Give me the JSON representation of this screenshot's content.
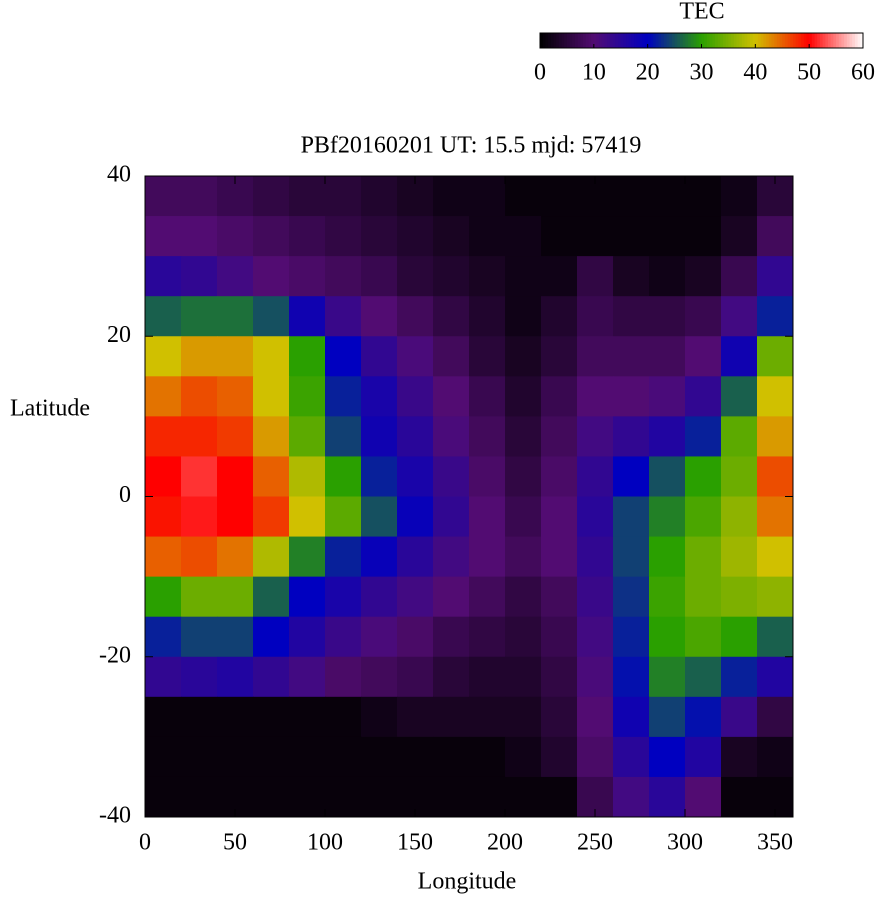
{
  "chart_data": {
    "type": "heatmap",
    "title": "PBf20160201  UT: 15.5  mjd: 57419",
    "x_label": "Longitude",
    "y_label": "Latitude",
    "colorbar_label": "TEC",
    "x": [
      10,
      30,
      50,
      70,
      90,
      110,
      130,
      150,
      170,
      190,
      210,
      230,
      250,
      270,
      290,
      310,
      330,
      350
    ],
    "y": [
      37.5,
      32.5,
      27.5,
      22.5,
      17.5,
      12.5,
      7.5,
      2.5,
      -2.5,
      -7.5,
      -12.5,
      -17.5,
      -22.5,
      -27.5,
      -32.5,
      -37.5
    ],
    "z": [
      [
        8,
        8,
        7,
        6,
        5,
        5,
        4,
        3,
        2,
        2,
        1,
        1,
        1,
        1,
        1,
        1,
        2,
        5
      ],
      [
        10,
        10,
        9,
        8,
        7,
        6,
        5,
        4,
        3,
        2,
        2,
        1,
        1,
        1,
        1,
        1,
        3,
        8
      ],
      [
        15,
        14,
        12,
        10,
        9,
        8,
        7,
        5,
        4,
        3,
        2,
        2,
        6,
        3,
        2,
        3,
        7,
        14
      ],
      [
        26,
        27,
        27,
        25,
        18,
        13,
        10,
        8,
        6,
        4,
        2,
        4,
        7,
        6,
        6,
        7,
        12,
        22
      ],
      [
        40,
        42,
        42,
        40,
        30,
        20,
        14,
        11,
        8,
        5,
        3,
        5,
        8,
        8,
        8,
        10,
        18,
        34
      ],
      [
        44,
        46,
        45,
        40,
        31,
        22,
        17,
        13,
        10,
        7,
        4,
        7,
        10,
        10,
        11,
        14,
        26,
        40
      ],
      [
        48,
        48,
        47,
        42,
        33,
        24,
        18,
        15,
        11,
        8,
        5,
        8,
        12,
        14,
        16,
        22,
        33,
        42
      ],
      [
        50,
        52,
        50,
        45,
        38,
        30,
        22,
        17,
        13,
        9,
        6,
        9,
        14,
        20,
        25,
        30,
        34,
        46
      ],
      [
        49,
        51,
        50,
        47,
        40,
        33,
        25,
        19,
        14,
        10,
        7,
        10,
        15,
        24,
        28,
        32,
        36,
        44
      ],
      [
        45,
        46,
        44,
        38,
        28,
        22,
        19,
        15,
        12,
        10,
        8,
        10,
        14,
        24,
        30,
        34,
        37,
        40
      ],
      [
        30,
        34,
        34,
        26,
        20,
        17,
        14,
        12,
        10,
        8,
        6,
        8,
        13,
        23,
        31,
        34,
        35,
        36
      ],
      [
        22,
        24,
        24,
        20,
        16,
        13,
        11,
        9,
        7,
        6,
        5,
        7,
        12,
        22,
        30,
        32,
        30,
        26
      ],
      [
        14,
        15,
        16,
        14,
        12,
        9,
        8,
        7,
        5,
        4,
        4,
        6,
        11,
        21,
        28,
        26,
        22,
        16
      ],
      [
        1,
        1,
        1,
        1,
        1,
        1,
        2,
        3,
        3,
        3,
        3,
        5,
        10,
        18,
        24,
        21,
        13,
        6
      ],
      [
        1,
        1,
        1,
        1,
        1,
        1,
        1,
        1,
        1,
        1,
        2,
        4,
        9,
        15,
        20,
        16,
        3,
        2
      ],
      [
        1,
        1,
        1,
        1,
        1,
        1,
        1,
        1,
        1,
        1,
        1,
        1,
        7,
        12,
        15,
        10,
        1,
        1
      ]
    ],
    "xlim": [
      0,
      360
    ],
    "xticks": [
      0,
      50,
      100,
      150,
      200,
      250,
      300,
      350
    ],
    "ylim": [
      -40,
      40
    ],
    "yticks": [
      -40,
      -20,
      0,
      20,
      40
    ],
    "zlim": [
      0,
      60
    ],
    "zticks": [
      0,
      10,
      20,
      30,
      40,
      50,
      60
    ],
    "colormap": [
      "#000000",
      "#520c72",
      "#0000c0",
      "#2aa000",
      "#d0c000",
      "#ff0000",
      "#ffffff"
    ]
  }
}
